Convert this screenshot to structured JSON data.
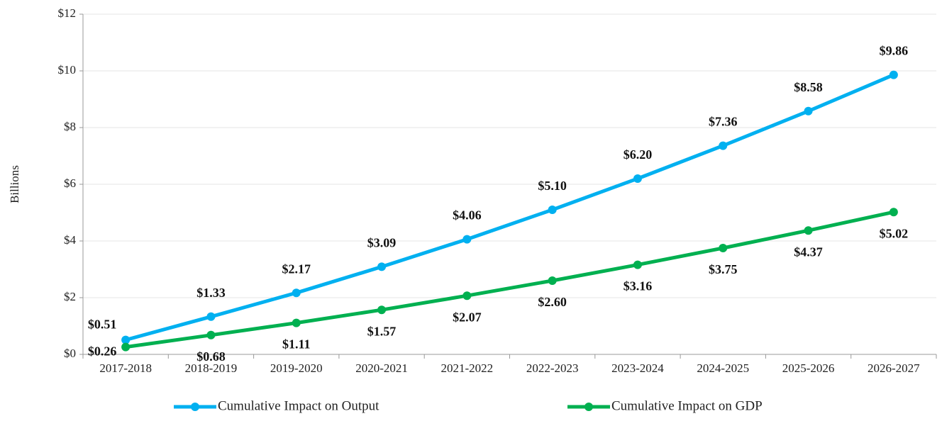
{
  "chart_data": {
    "type": "line",
    "y_label": "Billions",
    "categories": [
      "2017-2018",
      "2018-2019",
      "2019-2020",
      "2020-2021",
      "2021-2022",
      "2022-2023",
      "2023-2024",
      "2024-2025",
      "2025-2026",
      "2026-2027"
    ],
    "series": [
      {
        "name": "Cumulative Impact on Output",
        "color": "#00b0f0",
        "values": [
          0.51,
          1.33,
          2.17,
          3.09,
          4.06,
          5.1,
          6.2,
          7.36,
          8.58,
          9.86
        ],
        "value_labels": [
          "$0.51",
          "$1.33",
          "$2.17",
          "$3.09",
          "$4.06",
          "$5.10",
          "$6.20",
          "$7.36",
          "$8.58",
          "$9.86"
        ]
      },
      {
        "name": "Cumulative Impact on GDP",
        "color": "#00b050",
        "values": [
          0.26,
          0.68,
          1.11,
          1.57,
          2.07,
          2.6,
          3.16,
          3.75,
          4.37,
          5.02
        ],
        "value_labels": [
          "$0.26",
          "$0.68",
          "$1.11",
          "$1.57",
          "$2.07",
          "$2.60",
          "$3.16",
          "$3.75",
          "$4.37",
          "$5.02"
        ]
      }
    ],
    "ylim": [
      0,
      12
    ],
    "yticks": [
      {
        "value": 0,
        "label": "$0"
      },
      {
        "value": 2,
        "label": "$2"
      },
      {
        "value": 4,
        "label": "$4"
      },
      {
        "value": 6,
        "label": "$6"
      },
      {
        "value": 8,
        "label": "$8"
      },
      {
        "value": 10,
        "label": "$10"
      },
      {
        "value": 12,
        "label": "$12"
      }
    ],
    "grid": true,
    "legend": "bottom"
  }
}
